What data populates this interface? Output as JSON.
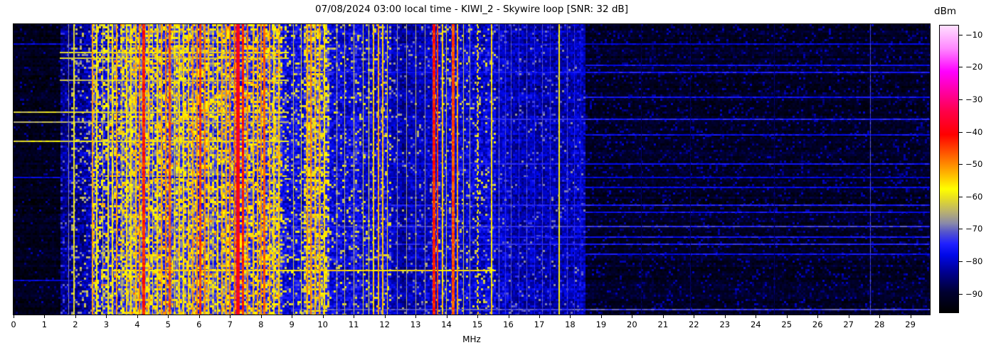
{
  "chart_data": {
    "type": "heatmap",
    "subtype": "radio-spectrogram-waterfall",
    "title": "07/08/2024 03:00 local time - KIWI_2 - Skywire loop [SNR: 32 dB]",
    "station": "KIWI_2",
    "antenna": "Skywire loop",
    "snr_db": 32,
    "datetime_label": "07/08/2024 03:00 local time",
    "x_axis": {
      "label": "MHz",
      "range": [
        0,
        29.63
      ],
      "ticks": [
        0,
        1,
        2,
        3,
        4,
        5,
        6,
        7,
        8,
        9,
        10,
        11,
        12,
        13,
        14,
        15,
        16,
        17,
        18,
        19,
        20,
        21,
        22,
        23,
        24,
        25,
        26,
        27,
        28,
        29
      ],
      "tick_labels": [
        "0",
        "1",
        "2",
        "3",
        "4",
        "5",
        "6",
        "7",
        "8",
        "9",
        "10",
        "11",
        "12",
        "13",
        "14",
        "15",
        "16",
        "17",
        "18",
        "19",
        "20",
        "21",
        "22",
        "23",
        "24",
        "25",
        "26",
        "27",
        "28",
        "29"
      ]
    },
    "colorbar": {
      "label": "dBm",
      "range": [
        -96,
        -7
      ],
      "ticks": [
        {
          "value": -10,
          "label": "−10"
        },
        {
          "value": -20,
          "label": "−20"
        },
        {
          "value": -30,
          "label": "−30"
        },
        {
          "value": -40,
          "label": "−40"
        },
        {
          "value": -50,
          "label": "−50"
        },
        {
          "value": -60,
          "label": "−60"
        },
        {
          "value": -70,
          "label": "−70"
        },
        {
          "value": -80,
          "label": "−80"
        },
        {
          "value": -90,
          "label": "−90"
        }
      ],
      "colormap_stops": [
        [
          0.0,
          "#000000"
        ],
        [
          0.07,
          "#000030"
        ],
        [
          0.14,
          "#000090"
        ],
        [
          0.2,
          "#0008e8"
        ],
        [
          0.24,
          "#2020ff"
        ],
        [
          0.28,
          "#5555cc"
        ],
        [
          0.31,
          "#8888aa"
        ],
        [
          0.35,
          "#b8b070"
        ],
        [
          0.4,
          "#e8e020"
        ],
        [
          0.43,
          "#ffff00"
        ],
        [
          0.5,
          "#ffa000"
        ],
        [
          0.56,
          "#ff5000"
        ],
        [
          0.62,
          "#ff0000"
        ],
        [
          0.7,
          "#ff0048"
        ],
        [
          0.78,
          "#ff00b0"
        ],
        [
          0.84,
          "#ff00ff"
        ],
        [
          0.92,
          "#ff88ff"
        ],
        [
          1.0,
          "#ffe0ff"
        ]
      ]
    },
    "bands": [
      {
        "from": 0.0,
        "to": 1.5,
        "base": -92.5,
        "jitter": 2.5,
        "p": 0.05,
        "spk": -85,
        "cg": 0.15
      },
      {
        "from": 1.5,
        "to": 1.85,
        "base": -84,
        "jitter": 4,
        "p": 0.12,
        "spk": -74,
        "cg": 0.3
      },
      {
        "from": 1.85,
        "to": 2.55,
        "base": -82,
        "jitter": 5,
        "p": 0.15,
        "spk": -66,
        "cg": 0.4
      },
      {
        "from": 2.55,
        "to": 3.45,
        "base": -77,
        "jitter": 7,
        "p": 0.25,
        "spk": -60,
        "cg": 1.0
      },
      {
        "from": 3.45,
        "to": 8.7,
        "base": -73.5,
        "jitter": 6,
        "p": 0.3,
        "spk": -57,
        "cg": 1.0
      },
      {
        "from": 8.7,
        "to": 9.42,
        "base": -78,
        "jitter": 5,
        "p": 0.15,
        "spk": -62,
        "cg": 0.5
      },
      {
        "from": 9.42,
        "to": 10.18,
        "base": -72,
        "jitter": 6,
        "p": 0.4,
        "spk": -58,
        "cg": 0.8
      },
      {
        "from": 10.18,
        "to": 12.2,
        "base": -77.5,
        "jitter": 5,
        "p": 0.12,
        "spk": -63,
        "cg": 0.5
      },
      {
        "from": 12.2,
        "to": 13.5,
        "base": -81.5,
        "jitter": 4,
        "p": 0.07,
        "spk": -68,
        "cg": 0.4
      },
      {
        "from": 13.5,
        "to": 15.6,
        "base": -79,
        "jitter": 5,
        "p": 0.1,
        "spk": -64,
        "cg": 0.5
      },
      {
        "from": 15.6,
        "to": 18.5,
        "base": -81.5,
        "jitter": 4,
        "p": 0.07,
        "spk": -71,
        "cg": 0.4
      },
      {
        "from": 18.5,
        "to": 29.63,
        "base": -91.5,
        "jitter": 2.5,
        "p": 0.12,
        "spk": -84,
        "cg": 0.15
      }
    ],
    "carriers": [
      {
        "f": 1.78,
        "db": -68,
        "w": 1
      },
      {
        "f": 1.95,
        "db": -60,
        "w": 2
      },
      {
        "f": 2.56,
        "db": -52,
        "w": 2
      },
      {
        "f": 2.7,
        "db": -58,
        "w": 2
      },
      {
        "f": 2.88,
        "db": -62,
        "w": 1
      },
      {
        "f": 3.05,
        "db": -60,
        "w": 2
      },
      {
        "f": 3.2,
        "db": -57,
        "w": 2
      },
      {
        "f": 3.33,
        "db": -52,
        "w": 2
      },
      {
        "f": 3.5,
        "db": -60,
        "w": 1
      },
      {
        "f": 3.65,
        "db": -56,
        "w": 2
      },
      {
        "f": 3.8,
        "db": -57,
        "w": 2
      },
      {
        "f": 3.95,
        "db": -54,
        "w": 2
      },
      {
        "f": 4.08,
        "db": -50,
        "w": 2
      },
      {
        "f": 4.22,
        "db": -43,
        "w": 4
      },
      {
        "f": 4.37,
        "db": -54,
        "w": 2
      },
      {
        "f": 4.5,
        "db": -57,
        "w": 1
      },
      {
        "f": 4.65,
        "db": -55,
        "w": 2
      },
      {
        "f": 4.78,
        "db": -52,
        "w": 2
      },
      {
        "f": 4.92,
        "db": -50,
        "w": 2
      },
      {
        "f": 5.06,
        "db": -46,
        "w": 3
      },
      {
        "f": 5.2,
        "db": -57,
        "w": 1
      },
      {
        "f": 5.35,
        "db": -55,
        "w": 2
      },
      {
        "f": 5.5,
        "db": -56,
        "w": 2
      },
      {
        "f": 5.65,
        "db": -54,
        "w": 2
      },
      {
        "f": 5.8,
        "db": -52,
        "w": 2
      },
      {
        "f": 5.93,
        "db": -50,
        "w": 2
      },
      {
        "f": 6.05,
        "db": -45,
        "w": 3
      },
      {
        "f": 6.18,
        "db": -50,
        "w": 2
      },
      {
        "f": 6.3,
        "db": -54,
        "w": 2
      },
      {
        "f": 6.45,
        "db": -56,
        "w": 1
      },
      {
        "f": 6.6,
        "db": -55,
        "w": 2
      },
      {
        "f": 6.75,
        "db": -53,
        "w": 2
      },
      {
        "f": 6.88,
        "db": -52,
        "w": 2
      },
      {
        "f": 7.0,
        "db": -50,
        "w": 2
      },
      {
        "f": 7.15,
        "db": -48,
        "w": 2
      },
      {
        "f": 7.25,
        "db": -39,
        "w": 5
      },
      {
        "f": 7.42,
        "db": -43,
        "w": 3
      },
      {
        "f": 7.56,
        "db": -50,
        "w": 2
      },
      {
        "f": 7.75,
        "db": -54,
        "w": 2
      },
      {
        "f": 7.9,
        "db": -52,
        "w": 2
      },
      {
        "f": 8.0,
        "db": -50,
        "w": 2
      },
      {
        "f": 8.12,
        "db": -47,
        "w": 3
      },
      {
        "f": 8.28,
        "db": -53,
        "w": 2
      },
      {
        "f": 8.42,
        "db": -56,
        "w": 2
      },
      {
        "f": 8.58,
        "db": -54,
        "w": 2
      },
      {
        "f": 9.05,
        "db": -62,
        "w": 1
      },
      {
        "f": 9.3,
        "db": -60,
        "w": 1
      },
      {
        "f": 9.5,
        "db": -52,
        "w": 2
      },
      {
        "f": 9.62,
        "db": -50,
        "w": 2
      },
      {
        "f": 9.75,
        "db": -54,
        "w": 2
      },
      {
        "f": 9.9,
        "db": -52,
        "w": 2
      },
      {
        "f": 10.05,
        "db": -56,
        "w": 2
      },
      {
        "f": 10.45,
        "db": -66,
        "w": 1
      },
      {
        "f": 10.7,
        "db": -64,
        "w": 1
      },
      {
        "f": 11.0,
        "db": -63,
        "w": 1
      },
      {
        "f": 11.3,
        "db": -60,
        "w": 1
      },
      {
        "f": 11.5,
        "db": -58,
        "w": 1
      },
      {
        "f": 11.65,
        "db": -55,
        "w": 2
      },
      {
        "f": 11.8,
        "db": -52,
        "w": 2
      },
      {
        "f": 11.95,
        "db": -54,
        "w": 2
      },
      {
        "f": 12.08,
        "db": -56,
        "w": 1
      },
      {
        "f": 12.4,
        "db": -68,
        "w": 1
      },
      {
        "f": 12.7,
        "db": -66,
        "w": 1
      },
      {
        "f": 13.0,
        "db": -65,
        "w": 1
      },
      {
        "f": 13.3,
        "db": -67,
        "w": 1
      },
      {
        "f": 13.6,
        "db": -43,
        "w": 4
      },
      {
        "f": 13.72,
        "db": -46,
        "w": 2
      },
      {
        "f": 13.87,
        "db": -55,
        "w": 2
      },
      {
        "f": 14.0,
        "db": -62,
        "w": 1
      },
      {
        "f": 14.22,
        "db": -46,
        "w": 4
      },
      {
        "f": 14.35,
        "db": -52,
        "w": 2
      },
      {
        "f": 14.55,
        "db": -62,
        "w": 1
      },
      {
        "f": 14.75,
        "db": -66,
        "w": 1
      },
      {
        "f": 15.0,
        "db": -56,
        "w": 2,
        "dashed": true
      },
      {
        "f": 15.45,
        "db": -56,
        "w": 2
      },
      {
        "f": 15.7,
        "db": -70,
        "w": 1
      },
      {
        "f": 15.9,
        "db": -73,
        "w": 1
      },
      {
        "f": 16.1,
        "db": -71,
        "w": 1
      },
      {
        "f": 16.35,
        "db": -74,
        "w": 1
      },
      {
        "f": 16.6,
        "db": -72,
        "w": 1
      },
      {
        "f": 16.85,
        "db": -75,
        "w": 1
      },
      {
        "f": 17.1,
        "db": -72,
        "w": 1
      },
      {
        "f": 17.35,
        "db": -74,
        "w": 1
      },
      {
        "f": 17.65,
        "db": -58,
        "w": 2
      },
      {
        "f": 17.9,
        "db": -73,
        "w": 1
      },
      {
        "f": 18.15,
        "db": -75,
        "w": 1
      },
      {
        "f": 18.35,
        "db": -77,
        "w": 1
      },
      {
        "f": 20.3,
        "db": -87,
        "w": 1
      },
      {
        "f": 21.9,
        "db": -86,
        "w": 1
      },
      {
        "f": 24.6,
        "db": -86,
        "w": 1
      },
      {
        "f": 27.7,
        "db": -72,
        "w": 1
      }
    ],
    "h_lines": [
      {
        "t": 0.065,
        "f0": 0,
        "f1": 29.63,
        "db": -79
      },
      {
        "t": 0.095,
        "f0": 1.5,
        "f1": 8.9,
        "db": -60
      },
      {
        "t": 0.115,
        "f0": 1.5,
        "f1": 8.9,
        "db": -62
      },
      {
        "t": 0.14,
        "f0": 18.5,
        "f1": 29.63,
        "db": -77
      },
      {
        "t": 0.165,
        "f0": 9.0,
        "f1": 29.63,
        "db": -76
      },
      {
        "t": 0.19,
        "f0": 1.5,
        "f1": 8.9,
        "db": -63
      },
      {
        "t": 0.25,
        "f0": 18.5,
        "f1": 29.63,
        "db": -77
      },
      {
        "t": 0.3,
        "f0": 0,
        "f1": 8.9,
        "db": -62
      },
      {
        "t": 0.325,
        "f0": 15.0,
        "f1": 29.63,
        "db": -75
      },
      {
        "t": 0.335,
        "f0": 0,
        "f1": 8.9,
        "db": -65
      },
      {
        "t": 0.38,
        "f0": 18.5,
        "f1": 29.63,
        "db": -77
      },
      {
        "t": 0.4,
        "f0": 0,
        "f1": 8.9,
        "db": -60
      },
      {
        "t": 0.48,
        "f0": 9.0,
        "f1": 29.63,
        "db": -76
      },
      {
        "t": 0.525,
        "f0": 0,
        "f1": 29.63,
        "db": -79
      },
      {
        "t": 0.56,
        "f0": 18.5,
        "f1": 29.63,
        "db": -78
      },
      {
        "t": 0.62,
        "f0": 9.0,
        "f1": 29.63,
        "db": -75
      },
      {
        "t": 0.645,
        "f0": 18.5,
        "f1": 29.63,
        "db": -77
      },
      {
        "t": 0.695,
        "f0": 9.0,
        "f1": 29.63,
        "db": -73
      },
      {
        "t": 0.73,
        "f0": 15.0,
        "f1": 29.63,
        "db": -76
      },
      {
        "t": 0.755,
        "f0": 9.0,
        "f1": 29.63,
        "db": -75
      },
      {
        "t": 0.79,
        "f0": 18.5,
        "f1": 29.63,
        "db": -77
      },
      {
        "t": 0.846,
        "f0": 3.2,
        "f1": 15.6,
        "db": -56
      },
      {
        "t": 0.88,
        "f0": 0,
        "f1": 2.55,
        "db": -79
      },
      {
        "t": 0.98,
        "f0": 9.0,
        "f1": 29.63,
        "db": -72
      }
    ]
  }
}
